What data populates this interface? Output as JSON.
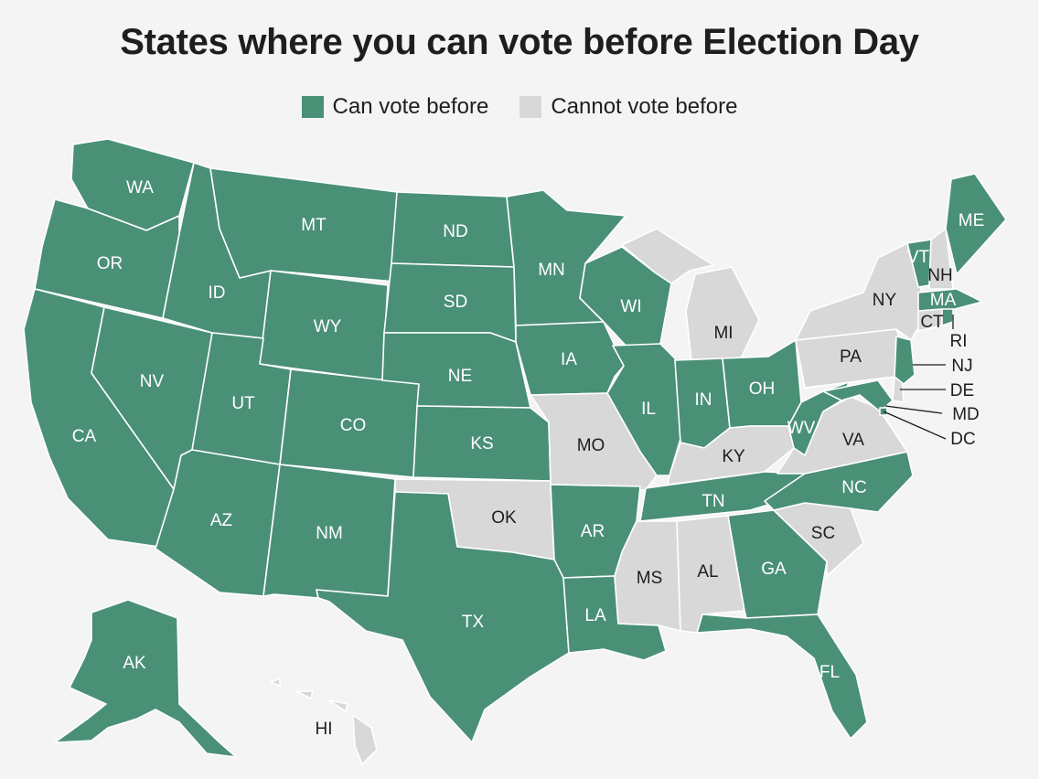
{
  "title": "States where you can vote before Election Day",
  "legend": [
    {
      "label": "Can vote before",
      "status": "yes"
    },
    {
      "label": "Cannot vote before",
      "status": "no"
    }
  ],
  "colors": {
    "yes": "#4a9076",
    "no": "#d8d8d8",
    "yes_label": "#ffffff",
    "no_label": "#1e1e1e"
  },
  "states": [
    {
      "abbr": "WA",
      "status": "yes"
    },
    {
      "abbr": "OR",
      "status": "yes"
    },
    {
      "abbr": "CA",
      "status": "yes"
    },
    {
      "abbr": "NV",
      "status": "yes"
    },
    {
      "abbr": "ID",
      "status": "yes"
    },
    {
      "abbr": "MT",
      "status": "yes"
    },
    {
      "abbr": "WY",
      "status": "yes"
    },
    {
      "abbr": "UT",
      "status": "yes"
    },
    {
      "abbr": "AZ",
      "status": "yes"
    },
    {
      "abbr": "CO",
      "status": "yes"
    },
    {
      "abbr": "NM",
      "status": "yes"
    },
    {
      "abbr": "ND",
      "status": "yes"
    },
    {
      "abbr": "SD",
      "status": "yes"
    },
    {
      "abbr": "NE",
      "status": "yes"
    },
    {
      "abbr": "KS",
      "status": "yes"
    },
    {
      "abbr": "OK",
      "status": "no"
    },
    {
      "abbr": "TX",
      "status": "yes"
    },
    {
      "abbr": "MN",
      "status": "yes"
    },
    {
      "abbr": "IA",
      "status": "yes"
    },
    {
      "abbr": "MO",
      "status": "no"
    },
    {
      "abbr": "AR",
      "status": "yes"
    },
    {
      "abbr": "LA",
      "status": "yes"
    },
    {
      "abbr": "WI",
      "status": "yes"
    },
    {
      "abbr": "IL",
      "status": "yes"
    },
    {
      "abbr": "MI",
      "status": "no"
    },
    {
      "abbr": "IN",
      "status": "yes"
    },
    {
      "abbr": "OH",
      "status": "yes"
    },
    {
      "abbr": "KY",
      "status": "no"
    },
    {
      "abbr": "TN",
      "status": "yes"
    },
    {
      "abbr": "MS",
      "status": "no"
    },
    {
      "abbr": "AL",
      "status": "no"
    },
    {
      "abbr": "GA",
      "status": "yes"
    },
    {
      "abbr": "FL",
      "status": "yes"
    },
    {
      "abbr": "SC",
      "status": "no"
    },
    {
      "abbr": "NC",
      "status": "yes"
    },
    {
      "abbr": "VA",
      "status": "no"
    },
    {
      "abbr": "WV",
      "status": "yes"
    },
    {
      "abbr": "PA",
      "status": "no"
    },
    {
      "abbr": "NY",
      "status": "no"
    },
    {
      "abbr": "VT",
      "status": "yes"
    },
    {
      "abbr": "NH",
      "status": "no"
    },
    {
      "abbr": "ME",
      "status": "yes"
    },
    {
      "abbr": "MA",
      "status": "yes"
    },
    {
      "abbr": "CT",
      "status": "no"
    },
    {
      "abbr": "RI",
      "status": "yes"
    },
    {
      "abbr": "NJ",
      "status": "yes"
    },
    {
      "abbr": "DE",
      "status": "no"
    },
    {
      "abbr": "MD",
      "status": "yes"
    },
    {
      "abbr": "DC",
      "status": "yes"
    },
    {
      "abbr": "AK",
      "status": "yes"
    },
    {
      "abbr": "HI",
      "status": "no"
    }
  ]
}
